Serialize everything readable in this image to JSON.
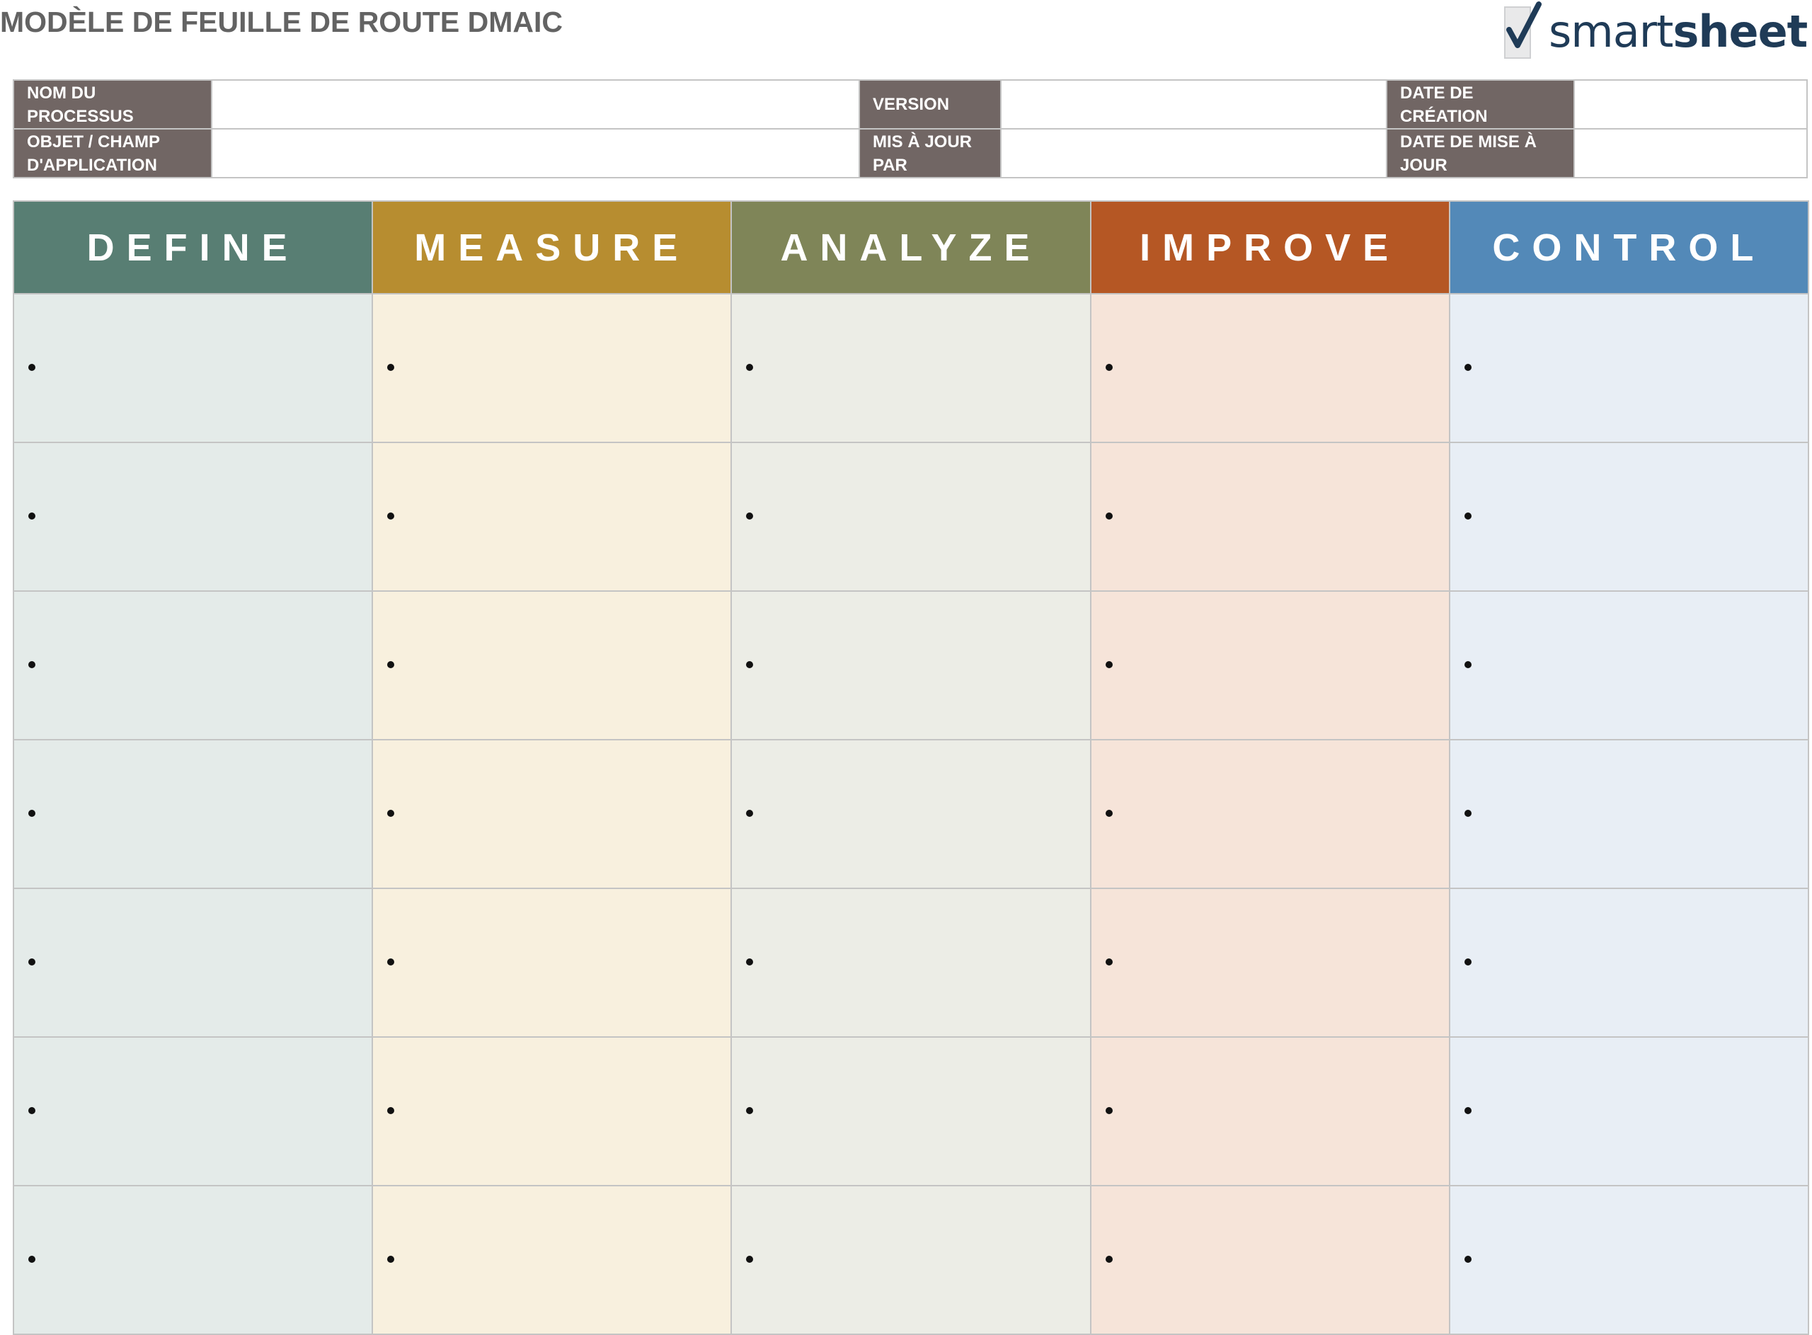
{
  "header": {
    "title": "MODÈLE DE FEUILLE DE ROUTE DMAIC",
    "logo": {
      "icon": "checkmark-icon",
      "text_regular": "smart",
      "text_bold": "sheet"
    }
  },
  "info": {
    "process_name_label": "NOM DU PROCESSUS",
    "process_name_value": "",
    "version_label": "VERSION",
    "version_value": "",
    "creation_date_label": "DATE DE CRÉATION",
    "creation_date_value": "",
    "scope_label": "OBJET / CHAMP D'APPLICATION",
    "scope_value": "",
    "updated_by_label": "MIS À JOUR PAR",
    "updated_by_value": "",
    "update_date_label": "DATE DE MISE À JOUR",
    "update_date_value": ""
  },
  "phases": [
    {
      "label": "DEFINE",
      "header_color": "#587e73",
      "cell_color": "#e4ebe9"
    },
    {
      "label": "MEASURE",
      "header_color": "#b78d30",
      "cell_color": "#f8f0de"
    },
    {
      "label": "ANALYZE",
      "header_color": "#7f8558",
      "cell_color": "#ecede6"
    },
    {
      "label": "IMPROVE",
      "header_color": "#b55724",
      "cell_color": "#f6e4d9"
    },
    {
      "label": "CONTROL",
      "header_color": "#5389b8",
      "cell_color": "#e8eef5"
    }
  ],
  "rows": [
    [
      "",
      "",
      "",
      "",
      ""
    ],
    [
      "",
      "",
      "",
      "",
      ""
    ],
    [
      "",
      "",
      "",
      "",
      ""
    ],
    [
      "",
      "",
      "",
      "",
      ""
    ],
    [
      "",
      "",
      "",
      "",
      ""
    ],
    [
      "",
      "",
      "",
      "",
      ""
    ],
    [
      "",
      "",
      "",
      "",
      ""
    ]
  ]
}
